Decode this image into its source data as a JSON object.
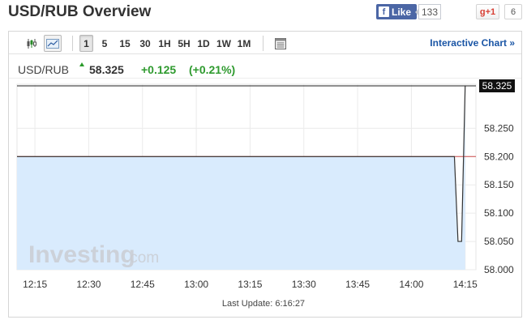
{
  "page": {
    "title": "USD/RUB Overview"
  },
  "social": {
    "like_label": "Like",
    "like_count": "133",
    "gplus_label": "g+1",
    "gplus_count": "6"
  },
  "toolbar": {
    "chart_type_icons": [
      "candlestick-icon",
      "line-chart-icon"
    ],
    "intervals": [
      "1",
      "5",
      "15",
      "30",
      "1H",
      "5H",
      "1D",
      "1W",
      "1M"
    ],
    "active_interval": "1",
    "table_icon": "table-icon",
    "interactive_link": "Interactive Chart »"
  },
  "quote": {
    "symbol": "USD/RUB",
    "last": "58.325",
    "change": "+0.125",
    "change_pct": "(+0.21%)",
    "up_color": "#2e9a2e"
  },
  "chart_data": {
    "type": "area",
    "x_tick_labels": [
      "12:15",
      "12:30",
      "12:45",
      "13:00",
      "13:15",
      "13:30",
      "13:45",
      "14:00",
      "14:15"
    ],
    "y_tick_labels": [
      "58.325",
      "58.250",
      "58.200",
      "58.150",
      "58.100",
      "58.050",
      "58.000"
    ],
    "x_range": [
      "12:10",
      "14:18"
    ],
    "y_range": [
      58.0,
      58.325
    ],
    "series": [
      {
        "x": [
          "12:10",
          "14:12",
          "14:13",
          "14:14",
          "14:15"
        ],
        "values": [
          58.2,
          58.2,
          58.05,
          58.05,
          58.325
        ]
      }
    ],
    "previous_close": 58.2,
    "current_price": 58.325,
    "current_price_label": "58.325",
    "watermark": "Investing.com",
    "fill_color": "#d9ebfd",
    "line_color": "#333333",
    "prev_close_color": "#cc4b4b",
    "grid": true
  },
  "footer": {
    "last_update": "Last Update: 6:16:27"
  }
}
